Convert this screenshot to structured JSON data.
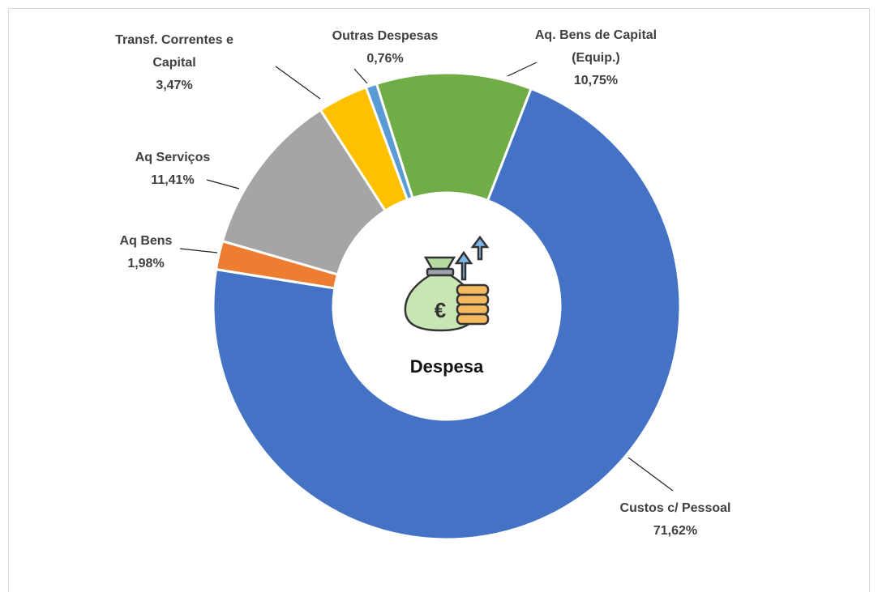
{
  "chart_data": {
    "type": "donut",
    "center_label": "Despesa",
    "categories": [
      "Aq. Bens de Capital (Equip.)",
      "Custos c/ Pessoal",
      "Aq Bens",
      "Aq Serviços",
      "Transf. Correntes e Capital",
      "Outras Despesas"
    ],
    "values": [
      10.75,
      71.62,
      1.98,
      11.41,
      3.47,
      0.76
    ],
    "value_labels": [
      "10,75%",
      "71,62%",
      "1,98%",
      "11,41%",
      "3,47%",
      "0,76%"
    ],
    "colors": [
      "#70ad47",
      "#4472c4",
      "#ed7d31",
      "#a5a5a5",
      "#ffc000",
      "#5b9bd5"
    ]
  }
}
